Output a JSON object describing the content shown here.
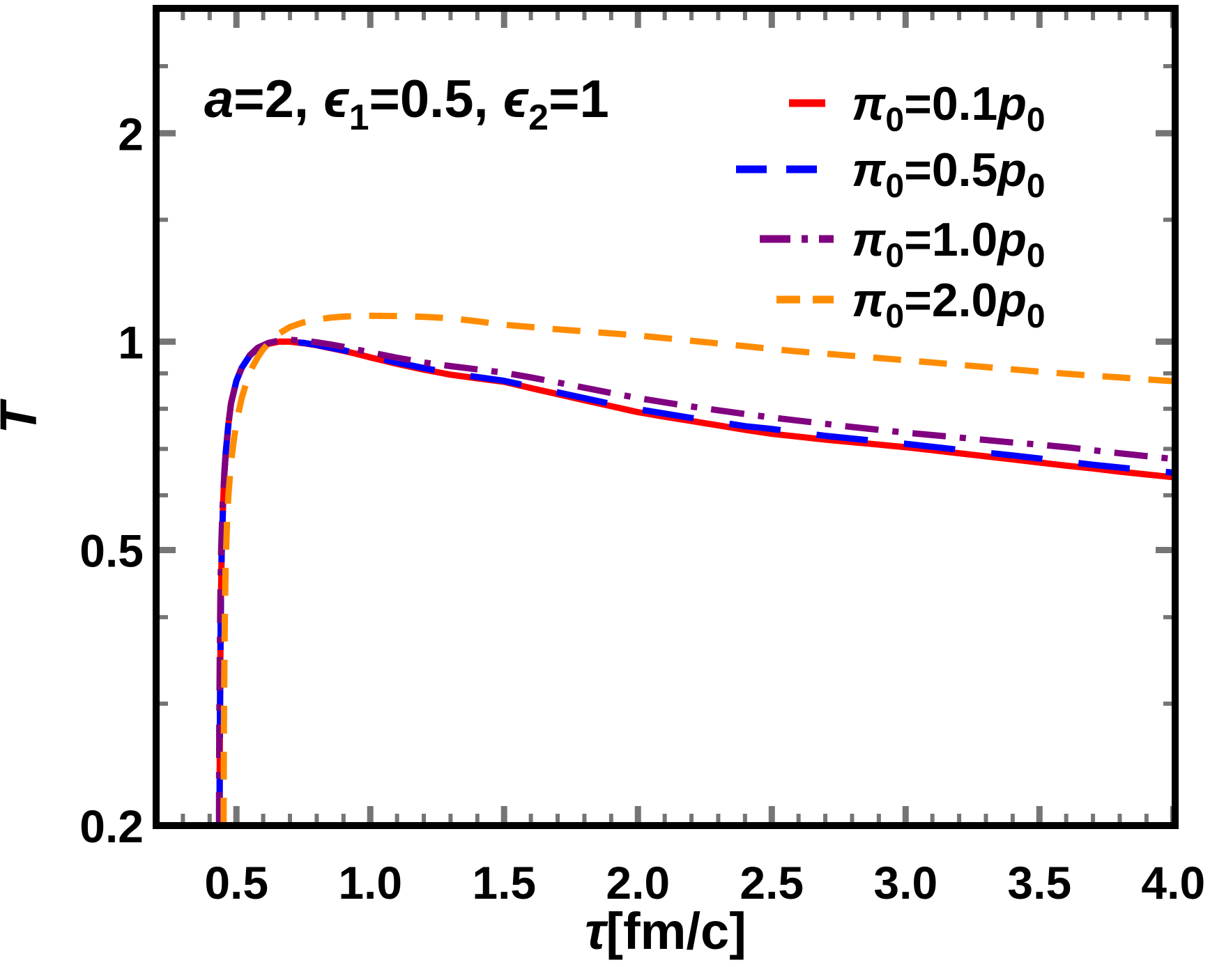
{
  "figure": {
    "annotation": {
      "parts": [
        "a",
        "=2, ",
        "ϵ",
        "1",
        "=0.5, ",
        "ϵ",
        "2",
        "=1"
      ],
      "text": "a=2, ϵ1=0.5, ϵ2=1"
    },
    "x_axis": {
      "label_tau": "τ",
      "label_unit": "[fm/c]",
      "majors": [
        {
          "t": 0.5,
          "label": "0.5"
        },
        {
          "t": 1.0,
          "label": "1.0"
        },
        {
          "t": 1.5,
          "label": "1.5"
        },
        {
          "t": 2.0,
          "label": "2.0"
        },
        {
          "t": 2.5,
          "label": "2.5"
        },
        {
          "t": 3.0,
          "label": "3.0"
        },
        {
          "t": 3.5,
          "label": "3.5"
        },
        {
          "t": 4.0,
          "label": "4.0"
        }
      ],
      "minor_step": 0.1,
      "range": [
        0.2,
        4.007
      ]
    },
    "y_axis": {
      "label": "T̃",
      "scale": "log",
      "majors": [
        {
          "v": 2,
          "label": "2"
        },
        {
          "v": 1,
          "label": "1"
        },
        {
          "v": 0.5,
          "label": "0.5"
        },
        {
          "v": 0.2,
          "label": "0.2"
        }
      ],
      "minors": [
        0.3,
        0.4,
        0.6,
        0.7,
        0.8,
        0.9,
        1.5,
        2.5
      ],
      "range": [
        0.2,
        3.03
      ]
    },
    "frame_color": "#000000",
    "tick_color": "#757575"
  },
  "legend": {
    "items": [
      {
        "parts": [
          "π",
          "0",
          "=0.1",
          "p",
          "0"
        ],
        "color": "#FF0000",
        "marker": "solid"
      },
      {
        "parts": [
          "π",
          "0",
          "=0.5",
          "p",
          "0"
        ],
        "color": "#0000FF",
        "marker": "dashes"
      },
      {
        "parts": [
          "π",
          "0",
          "=1.0",
          "p",
          "0"
        ],
        "color": "#800080",
        "marker": "dash-dot"
      },
      {
        "parts": [
          "π",
          "0",
          "=2.0",
          "p",
          "0"
        ],
        "color": "#FF8C00",
        "marker": "short-dashes"
      }
    ]
  },
  "chart_data": {
    "type": "line",
    "title": "",
    "annotation": "a=2, ϵ1=0.5, ϵ2=1",
    "xlabel": "τ[fm/c]",
    "ylabel": "T̃",
    "x_range": [
      0.2,
      4.0
    ],
    "y_range": [
      0.2,
      3.0
    ],
    "y_scale": "log",
    "grid": false,
    "legend_position": "upper right inside",
    "series": [
      {
        "id": "pi-0.1",
        "name": "π₀=0.1p₀",
        "color": "#FF0000",
        "style": "solid",
        "points": [
          [
            0.437,
            0.2
          ],
          [
            0.438,
            0.27
          ],
          [
            0.44,
            0.35
          ],
          [
            0.442,
            0.42
          ],
          [
            0.445,
            0.5
          ],
          [
            0.45,
            0.58
          ],
          [
            0.455,
            0.645
          ],
          [
            0.46,
            0.69
          ],
          [
            0.47,
            0.76
          ],
          [
            0.48,
            0.815
          ],
          [
            0.5,
            0.878
          ],
          [
            0.52,
            0.917
          ],
          [
            0.55,
            0.955
          ],
          [
            0.58,
            0.978
          ],
          [
            0.62,
            0.993
          ],
          [
            0.66,
            1.0
          ],
          [
            0.7,
            1.0
          ],
          [
            0.75,
            0.995
          ],
          [
            0.8,
            0.988
          ],
          [
            0.85,
            0.979
          ],
          [
            0.9,
            0.97
          ],
          [
            0.95,
            0.96
          ],
          [
            1.0,
            0.949
          ],
          [
            1.1,
            0.929
          ],
          [
            1.2,
            0.911
          ],
          [
            1.3,
            0.896
          ],
          [
            1.4,
            0.885
          ],
          [
            1.5,
            0.875
          ],
          [
            1.6,
            0.857
          ],
          [
            1.7,
            0.84
          ],
          [
            1.8,
            0.823
          ],
          [
            1.9,
            0.807
          ],
          [
            2.0,
            0.791
          ],
          [
            2.1,
            0.779
          ],
          [
            2.2,
            0.768
          ],
          [
            2.3,
            0.757
          ],
          [
            2.4,
            0.746
          ],
          [
            2.5,
            0.736
          ],
          [
            2.6,
            0.729
          ],
          [
            2.7,
            0.722
          ],
          [
            2.8,
            0.716
          ],
          [
            2.9,
            0.71
          ],
          [
            3.0,
            0.704
          ],
          [
            3.1,
            0.697
          ],
          [
            3.2,
            0.69
          ],
          [
            3.3,
            0.683
          ],
          [
            3.4,
            0.676
          ],
          [
            3.5,
            0.669
          ],
          [
            3.6,
            0.662
          ],
          [
            3.7,
            0.656
          ],
          [
            3.8,
            0.649
          ],
          [
            3.9,
            0.643
          ],
          [
            4.0,
            0.637
          ]
        ]
      },
      {
        "id": "pi-0.5",
        "name": "π₀=0.5p₀",
        "color": "#0000FF",
        "style": "long-dash",
        "points": [
          [
            0.437,
            0.2
          ],
          [
            0.438,
            0.27
          ],
          [
            0.44,
            0.35
          ],
          [
            0.442,
            0.42
          ],
          [
            0.445,
            0.5
          ],
          [
            0.45,
            0.58
          ],
          [
            0.455,
            0.645
          ],
          [
            0.46,
            0.69
          ],
          [
            0.47,
            0.76
          ],
          [
            0.48,
            0.815
          ],
          [
            0.5,
            0.878
          ],
          [
            0.52,
            0.917
          ],
          [
            0.55,
            0.955
          ],
          [
            0.58,
            0.978
          ],
          [
            0.62,
            0.993
          ],
          [
            0.66,
            1.0
          ],
          [
            0.7,
            1.0
          ],
          [
            0.75,
            0.996
          ],
          [
            0.8,
            0.989
          ],
          [
            0.9,
            0.972
          ],
          [
            1.0,
            0.952
          ],
          [
            1.1,
            0.933
          ],
          [
            1.2,
            0.916
          ],
          [
            1.3,
            0.901
          ],
          [
            1.4,
            0.889
          ],
          [
            1.5,
            0.878
          ],
          [
            1.7,
            0.845
          ],
          [
            1.9,
            0.813
          ],
          [
            2.0,
            0.799
          ],
          [
            2.2,
            0.776
          ],
          [
            2.4,
            0.755
          ],
          [
            2.5,
            0.748
          ],
          [
            2.7,
            0.731
          ],
          [
            2.9,
            0.718
          ],
          [
            3.0,
            0.712
          ],
          [
            3.2,
            0.698
          ],
          [
            3.4,
            0.685
          ],
          [
            3.5,
            0.678
          ],
          [
            3.7,
            0.664
          ],
          [
            3.9,
            0.652
          ],
          [
            4.0,
            0.647
          ]
        ]
      },
      {
        "id": "pi-1.0",
        "name": "π₀=1.0p₀",
        "color": "#800080",
        "style": "dash-dot",
        "points": [
          [
            0.435,
            0.2
          ],
          [
            0.436,
            0.28
          ],
          [
            0.438,
            0.36
          ],
          [
            0.44,
            0.43
          ],
          [
            0.443,
            0.5
          ],
          [
            0.448,
            0.575
          ],
          [
            0.455,
            0.645
          ],
          [
            0.46,
            0.69
          ],
          [
            0.47,
            0.76
          ],
          [
            0.48,
            0.815
          ],
          [
            0.5,
            0.878
          ],
          [
            0.52,
            0.917
          ],
          [
            0.55,
            0.956
          ],
          [
            0.58,
            0.98
          ],
          [
            0.62,
            0.996
          ],
          [
            0.66,
            1.004
          ],
          [
            0.7,
            1.006
          ],
          [
            0.75,
            1.003
          ],
          [
            0.8,
            0.998
          ],
          [
            0.85,
            0.991
          ],
          [
            0.9,
            0.983
          ],
          [
            0.95,
            0.974
          ],
          [
            1.0,
            0.965
          ],
          [
            1.1,
            0.948
          ],
          [
            1.2,
            0.933
          ],
          [
            1.3,
            0.922
          ],
          [
            1.4,
            0.912
          ],
          [
            1.5,
            0.902
          ],
          [
            1.6,
            0.888
          ],
          [
            1.7,
            0.873
          ],
          [
            1.8,
            0.858
          ],
          [
            1.9,
            0.843
          ],
          [
            2.0,
            0.829
          ],
          [
            2.1,
            0.817
          ],
          [
            2.2,
            0.806
          ],
          [
            2.3,
            0.796
          ],
          [
            2.4,
            0.786
          ],
          [
            2.5,
            0.777
          ],
          [
            2.6,
            0.769
          ],
          [
            2.7,
            0.761
          ],
          [
            2.8,
            0.753
          ],
          [
            2.9,
            0.746
          ],
          [
            3.0,
            0.739
          ],
          [
            3.2,
            0.727
          ],
          [
            3.4,
            0.715
          ],
          [
            3.5,
            0.71
          ],
          [
            3.6,
            0.704
          ],
          [
            3.8,
            0.69
          ],
          [
            4.0,
            0.677
          ]
        ]
      },
      {
        "id": "pi-2.0",
        "name": "π₀=2.0p₀",
        "color": "#FF8C00",
        "style": "dash",
        "points": [
          [
            0.452,
            0.2
          ],
          [
            0.453,
            0.27
          ],
          [
            0.455,
            0.34
          ],
          [
            0.457,
            0.41
          ],
          [
            0.46,
            0.48
          ],
          [
            0.465,
            0.55
          ],
          [
            0.47,
            0.6
          ],
          [
            0.48,
            0.67
          ],
          [
            0.49,
            0.72
          ],
          [
            0.5,
            0.765
          ],
          [
            0.52,
            0.83
          ],
          [
            0.54,
            0.88
          ],
          [
            0.56,
            0.92
          ],
          [
            0.58,
            0.95
          ],
          [
            0.6,
            0.975
          ],
          [
            0.63,
            1.005
          ],
          [
            0.66,
            1.028
          ],
          [
            0.7,
            1.05
          ],
          [
            0.75,
            1.066
          ],
          [
            0.8,
            1.076
          ],
          [
            0.85,
            1.083
          ],
          [
            0.9,
            1.087
          ],
          [
            0.95,
            1.089
          ],
          [
            1.0,
            1.09
          ],
          [
            1.1,
            1.089
          ],
          [
            1.2,
            1.086
          ],
          [
            1.3,
            1.081
          ],
          [
            1.4,
            1.07
          ],
          [
            1.5,
            1.058
          ],
          [
            1.6,
            1.05
          ],
          [
            1.7,
            1.042
          ],
          [
            1.8,
            1.035
          ],
          [
            1.9,
            1.028
          ],
          [
            2.0,
            1.021
          ],
          [
            2.1,
            1.012
          ],
          [
            2.2,
            1.003
          ],
          [
            2.3,
            0.994
          ],
          [
            2.4,
            0.985
          ],
          [
            2.5,
            0.976
          ],
          [
            2.6,
            0.968
          ],
          [
            2.7,
            0.961
          ],
          [
            2.8,
            0.954
          ],
          [
            2.9,
            0.947
          ],
          [
            3.0,
            0.94
          ],
          [
            3.1,
            0.933
          ],
          [
            3.2,
            0.926
          ],
          [
            3.3,
            0.919
          ],
          [
            3.4,
            0.912
          ],
          [
            3.5,
            0.905
          ],
          [
            3.6,
            0.899
          ],
          [
            3.7,
            0.893
          ],
          [
            3.8,
            0.888
          ],
          [
            3.9,
            0.882
          ],
          [
            4.0,
            0.877
          ]
        ]
      }
    ]
  }
}
